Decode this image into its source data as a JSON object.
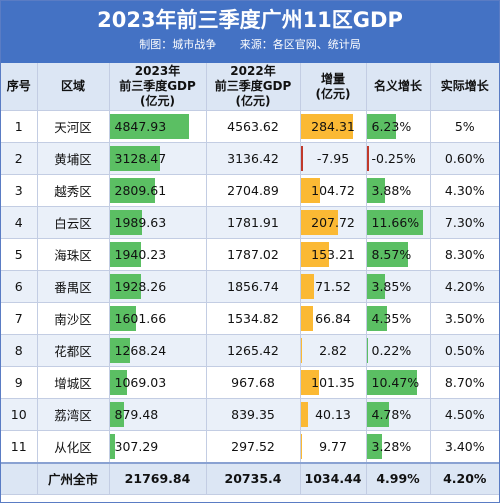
{
  "header": {
    "title": "2023年前三季度广州11区GDP",
    "credit": "制图：城市战争",
    "source": "来源：各区官网、统计局"
  },
  "columns": [
    "序号",
    "区域",
    "2023年\n前三季度GDP\n(亿元)",
    "2022年\n前三季度GDP\n(亿元)",
    "增量\n(亿元)",
    "名义增长",
    "实际增长"
  ],
  "colors": {
    "header": "#4472c4",
    "green_bar": "#5bbf63",
    "orange_bar": "#fbb934"
  },
  "rows": [
    {
      "no": "1",
      "district": "天河区",
      "gdp2023": "4847.93",
      "gdp2022": "4563.62",
      "increase": "284.31",
      "nominal": "6.23%",
      "real": "5%"
    },
    {
      "no": "2",
      "district": "黄埔区",
      "gdp2023": "3128.47",
      "gdp2022": "3136.42",
      "increase": "-7.95",
      "nominal": "-0.25%",
      "real": "0.60%"
    },
    {
      "no": "3",
      "district": "越秀区",
      "gdp2023": "2809.61",
      "gdp2022": "2704.89",
      "increase": "104.72",
      "nominal": "3.88%",
      "real": "4.30%"
    },
    {
      "no": "4",
      "district": "白云区",
      "gdp2023": "1989.63",
      "gdp2022": "1781.91",
      "increase": "207.72",
      "nominal": "11.66%",
      "real": "7.30%"
    },
    {
      "no": "5",
      "district": "海珠区",
      "gdp2023": "1940.23",
      "gdp2022": "1787.02",
      "increase": "153.21",
      "nominal": "8.57%",
      "real": "8.30%"
    },
    {
      "no": "6",
      "district": "番禺区",
      "gdp2023": "1928.26",
      "gdp2022": "1856.74",
      "increase": "71.52",
      "nominal": "3.85%",
      "real": "4.20%"
    },
    {
      "no": "7",
      "district": "南沙区",
      "gdp2023": "1601.66",
      "gdp2022": "1534.82",
      "increase": "66.84",
      "nominal": "4.35%",
      "real": "3.50%"
    },
    {
      "no": "8",
      "district": "花都区",
      "gdp2023": "1268.24",
      "gdp2022": "1265.42",
      "increase": "2.82",
      "nominal": "0.22%",
      "real": "0.50%"
    },
    {
      "no": "9",
      "district": "增城区",
      "gdp2023": "1069.03",
      "gdp2022": "967.68",
      "increase": "101.35",
      "nominal": "10.47%",
      "real": "8.70%"
    },
    {
      "no": "10",
      "district": "荔湾区",
      "gdp2023": "879.48",
      "gdp2022": "839.35",
      "increase": "40.13",
      "nominal": "4.78%",
      "real": "4.50%"
    },
    {
      "no": "11",
      "district": "从化区",
      "gdp2023": "307.29",
      "gdp2022": "297.52",
      "increase": "9.77",
      "nominal": "3.28%",
      "real": "3.40%"
    }
  ],
  "total": {
    "district": "广州全市",
    "gdp2023": "21769.84",
    "gdp2022": "20735.4",
    "increase": "1034.44",
    "nominal": "4.99%",
    "real": "4.20%"
  },
  "chart_data": {
    "type": "table",
    "title": "2023年前三季度广州11区GDP",
    "categories": [
      "天河区",
      "黄埔区",
      "越秀区",
      "白云区",
      "海珠区",
      "番禺区",
      "南沙区",
      "花都区",
      "增城区",
      "荔湾区",
      "从化区"
    ],
    "series": [
      {
        "name": "2023年前三季度GDP(亿元)",
        "values": [
          4847.93,
          3128.47,
          2809.61,
          1989.63,
          1940.23,
          1928.26,
          1601.66,
          1268.24,
          1069.03,
          879.48,
          307.29
        ]
      },
      {
        "name": "2022年前三季度GDP(亿元)",
        "values": [
          4563.62,
          3136.42,
          2704.89,
          1781.91,
          1787.02,
          1856.74,
          1534.82,
          1265.42,
          967.68,
          839.35,
          297.52
        ]
      },
      {
        "name": "增量(亿元)",
        "values": [
          284.31,
          -7.95,
          104.72,
          207.72,
          153.21,
          71.52,
          66.84,
          2.82,
          101.35,
          40.13,
          9.77
        ]
      },
      {
        "name": "名义增长",
        "values": [
          6.23,
          -0.25,
          3.88,
          11.66,
          8.57,
          3.85,
          4.35,
          0.22,
          10.47,
          4.78,
          3.28
        ]
      },
      {
        "name": "实际增长",
        "values": [
          5,
          0.6,
          4.3,
          7.3,
          8.3,
          4.2,
          3.5,
          0.5,
          8.7,
          4.5,
          3.4
        ]
      }
    ]
  }
}
